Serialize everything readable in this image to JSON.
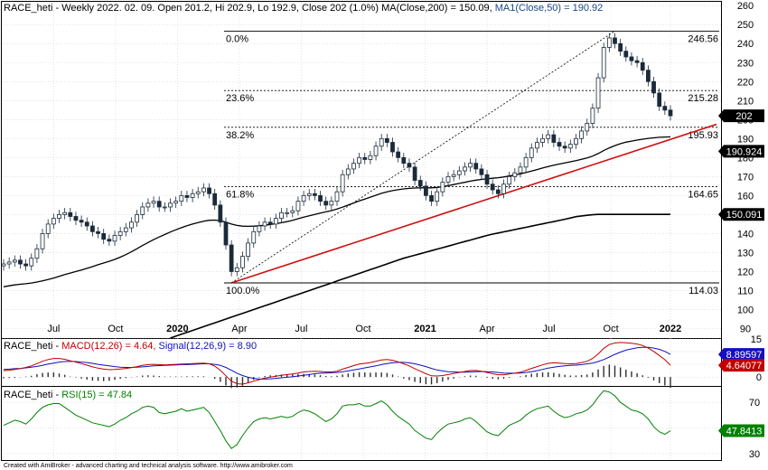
{
  "header": {
    "main_prefix": "RACE_heti - Weekly 2022. 02. 09. Open 201.2, Hi 202.9, Lo 192.9, Close 202 (1.0%) ",
    "main_ma200": "MA(Close,200) = 150.09,",
    "main_ma50": " MA1(Close,50) = 190.92",
    "macd_prefix": "RACE_heti - ",
    "macd_label": "MACD(12,26) = 4.64,",
    "macd_signal": " Signal(12,26,9) = 8.90",
    "rsi_prefix": "RACE_heti - ",
    "rsi_label": "RSI(15) = 47.84"
  },
  "footer": "Created with AmiBroker - advanced charting and technical analysis software. http://www.amibroker.com",
  "colors": {
    "grid": "#d0d0d0",
    "candle": "#1a2a3a",
    "ma200": "#000000",
    "ma50": "#000000",
    "trendline": "#d01010",
    "macd": "#c00000",
    "signal": "#1010c0",
    "hist": "#303030",
    "rsi": "#008000",
    "tag_price": "#000000",
    "tag_blue": "#1010c0",
    "tag_red": "#c00000",
    "tag_green": "#008000"
  },
  "chart_data": [
    {
      "type": "candlestick",
      "title": "RACE_heti - Weekly",
      "ylim": [
        85,
        262
      ],
      "y_ticks": [
        90,
        100,
        110,
        120,
        130,
        140,
        150,
        160,
        170,
        180,
        190,
        200,
        210,
        220,
        230,
        240,
        250,
        260
      ],
      "x_ticks": [
        "Jul",
        "Oct",
        "2020",
        "Apr",
        "Jul",
        "Oct",
        "2021",
        "Apr",
        "Jul",
        "Oct",
        "2022"
      ],
      "last_values": {
        "close": "202",
        "ma50": "190.924",
        "ma200": "150.091"
      },
      "fibonacci": [
        {
          "level": "0.0%",
          "price": 246.56,
          "label": "246.56"
        },
        {
          "level": "23.6%",
          "price": 215.28,
          "label": "215.28"
        },
        {
          "level": "38.2%",
          "price": 195.93,
          "label": "195.93"
        },
        {
          "level": "61.8%",
          "price": 164.65,
          "label": "164.65"
        },
        {
          "level": "100.0%",
          "price": 114.03,
          "label": "114.03"
        }
      ],
      "close_series": [
        124,
        125,
        126,
        124,
        123,
        127,
        132,
        140,
        145,
        148,
        150,
        151,
        149,
        147,
        146,
        144,
        141,
        140,
        137,
        136,
        139,
        141,
        143,
        146,
        150,
        154,
        156,
        157,
        154,
        154,
        156,
        157,
        160,
        159,
        161,
        162,
        164,
        161,
        155,
        146,
        134,
        120,
        122,
        128,
        135,
        141,
        144,
        146,
        145,
        148,
        151,
        151,
        152,
        157,
        160,
        161,
        160,
        157,
        155,
        157,
        162,
        171,
        174,
        177,
        180,
        179,
        181,
        186,
        190,
        188,
        183,
        180,
        177,
        175,
        168,
        165,
        160,
        157,
        162,
        167,
        170,
        171,
        173,
        175,
        177,
        174,
        171,
        166,
        163,
        161,
        166,
        170,
        172,
        175,
        180,
        185,
        188,
        190,
        192,
        188,
        186,
        185,
        187,
        190,
        194,
        198,
        206,
        222,
        238,
        243,
        240,
        236,
        233,
        231,
        230,
        226,
        220,
        214,
        207,
        205,
        202
      ],
      "ma50_series": [
        112,
        112.5,
        113,
        113.3,
        113.6,
        114,
        114.5,
        115.1,
        115.8,
        116.6,
        117.5,
        118.4,
        119.2,
        120,
        120.8,
        121.7,
        122.6,
        123.6,
        124.5,
        125.4,
        126.4,
        127.6,
        128.9,
        130.4,
        132,
        133.7,
        135.3,
        136.8,
        138.2,
        139.5,
        140.8,
        142,
        143.1,
        144.1,
        145,
        145.8,
        146.5,
        147,
        147.1,
        146.8,
        146,
        145,
        144.3,
        143.9,
        143.8,
        143.9,
        144.1,
        144.4,
        144.8,
        145.2,
        145.7,
        146.3,
        147,
        147.8,
        148.6,
        149.4,
        150.1,
        150.8,
        151.4,
        152.1,
        152.9,
        153.9,
        155,
        156.1,
        157.2,
        158.2,
        159.2,
        160.2,
        161.2,
        162,
        162.6,
        163.1,
        163.5,
        163.8,
        164,
        164.1,
        164.1,
        164.1,
        164.3,
        164.7,
        165.2,
        165.8,
        166.4,
        167,
        167.6,
        168.1,
        168.5,
        168.8,
        169.1,
        169.4,
        169.8,
        170.3,
        170.8,
        171.4,
        172.1,
        172.9,
        173.7,
        174.5,
        175.3,
        176,
        176.6,
        177.2,
        177.8,
        178.4,
        179.1,
        179.8,
        180.8,
        182.1,
        183.7,
        185.1,
        186.3,
        187.3,
        188.1,
        188.7,
        189.2,
        189.7,
        190.1,
        190.4,
        190.7,
        190.8,
        190.92
      ],
      "ma200_series": [
        55,
        56,
        57,
        58,
        59,
        60,
        61,
        62,
        63,
        64,
        65,
        66,
        67,
        68,
        69,
        70,
        71,
        72,
        73,
        74,
        75,
        76,
        77,
        78,
        79,
        80,
        81,
        82,
        83,
        84,
        85,
        86,
        87,
        88,
        89,
        90,
        91,
        92,
        93,
        94,
        95,
        96,
        97,
        98,
        99,
        100,
        101,
        102,
        103,
        104,
        105,
        106,
        107,
        108,
        109,
        110,
        111,
        112,
        113,
        114,
        115,
        116,
        117,
        118,
        119,
        120,
        121,
        122,
        123,
        124,
        125,
        126,
        127,
        127.8,
        128.6,
        129.4,
        130.2,
        131,
        131.8,
        132.6,
        133.4,
        134.2,
        135,
        135.8,
        136.6,
        137.4,
        138.2,
        139,
        139.7,
        140.3,
        140.9,
        141.5,
        142.1,
        142.7,
        143.3,
        143.9,
        144.5,
        145.1,
        145.7,
        146.3,
        146.9,
        147.5,
        148.2,
        148.9,
        149.3,
        149.6,
        149.9,
        150.09,
        150.09,
        150.09,
        150.09,
        150.09,
        150.09,
        150.09,
        150.09,
        150.09,
        150.09,
        150.09,
        150.09,
        150.09,
        150.09
      ],
      "ma200_visible_from_index": 30
    },
    {
      "type": "line",
      "title": "MACD(12,26) / Signal(12,26,9)",
      "ylim": [
        -3.5,
        15
      ],
      "y_ticks": [
        0,
        5,
        10,
        15
      ],
      "last_values": {
        "macd": "4.64077",
        "signal": "8.89597"
      },
      "macd_series": [
        2.5,
        2.7,
        3,
        3.3,
        3.8,
        4.4,
        5.3,
        6.2,
        6.9,
        7.3,
        7.3,
        7.0,
        6.4,
        5.9,
        5.3,
        4.7,
        4.0,
        3.5,
        3.1,
        2.9,
        3.0,
        3.2,
        3.4,
        3.7,
        4.1,
        4.6,
        4.9,
        5.0,
        4.9,
        4.8,
        4.9,
        5.0,
        5.1,
        5.2,
        5.3,
        5.4,
        5.5,
        5.2,
        4.3,
        2.7,
        0.5,
        -1.6,
        -2.6,
        -2.8,
        -2.3,
        -1.6,
        -1.0,
        -0.4,
        0.0,
        0.3,
        0.7,
        1.0,
        1.2,
        1.6,
        2.0,
        2.2,
        2.3,
        2.2,
        2.0,
        2.0,
        2.3,
        3.1,
        3.8,
        4.5,
        5.1,
        5.4,
        5.7,
        6.2,
        6.7,
        6.9,
        6.6,
        6.0,
        5.2,
        4.4,
        3.3,
        2.3,
        1.3,
        0.5,
        0.4,
        0.6,
        1.0,
        1.4,
        1.8,
        2.2,
        2.6,
        2.6,
        2.3,
        1.8,
        1.3,
        0.9,
        0.9,
        1.2,
        1.5,
        1.9,
        2.6,
        3.4,
        4.1,
        4.8,
        5.4,
        5.6,
        5.5,
        5.3,
        5.2,
        5.3,
        5.7,
        6.2,
        7.3,
        9.1,
        11.3,
        12.8,
        13.4,
        13.6,
        13.5,
        13.3,
        13.0,
        12.4,
        11.4,
        10.1,
        8.5,
        6.8,
        4.64
      ],
      "signal_series": [
        3,
        3.1,
        3.3,
        3.4,
        3.6,
        3.9,
        4.2,
        4.6,
        5.1,
        5.5,
        5.9,
        6.1,
        6.2,
        6.1,
        5.9,
        5.7,
        5.4,
        5.0,
        4.7,
        4.4,
        4.1,
        3.9,
        3.8,
        3.8,
        3.9,
        4.0,
        4.2,
        4.4,
        4.5,
        4.6,
        4.7,
        4.8,
        4.9,
        4.9,
        5.0,
        5.1,
        5.2,
        5.2,
        5.0,
        4.6,
        3.8,
        2.7,
        1.5,
        0.6,
        -0.1,
        -0.5,
        -0.8,
        -0.8,
        -0.7,
        -0.5,
        -0.3,
        -0.1,
        0.1,
        0.4,
        0.7,
        1.0,
        1.3,
        1.5,
        1.6,
        1.7,
        1.8,
        2.1,
        2.4,
        2.8,
        3.2,
        3.6,
        4.0,
        4.4,
        4.9,
        5.3,
        5.6,
        5.8,
        5.8,
        5.6,
        5.2,
        4.7,
        4.1,
        3.4,
        2.8,
        2.4,
        2.1,
        2.0,
        1.9,
        1.9,
        2.0,
        2.1,
        2.2,
        2.1,
        2.0,
        1.8,
        1.6,
        1.5,
        1.5,
        1.6,
        1.8,
        2.1,
        2.5,
        3.0,
        3.5,
        3.9,
        4.2,
        4.4,
        4.6,
        4.7,
        4.9,
        5.2,
        5.5,
        6.1,
        6.9,
        7.9,
        8.9,
        9.8,
        10.6,
        11.1,
        11.5,
        11.7,
        11.7,
        11.4,
        10.9,
        10.1,
        8.9
      ]
    },
    {
      "type": "line",
      "title": "RSI(15)",
      "ylim": [
        25,
        82
      ],
      "y_ticks": [
        30,
        50,
        70
      ],
      "last_values": {
        "rsi": "47.8413"
      },
      "rsi_series": [
        52,
        54,
        56,
        55,
        53,
        57,
        62,
        66,
        68,
        69,
        69,
        66,
        63,
        60,
        58,
        56,
        54,
        53,
        52,
        51,
        53,
        56,
        58,
        61,
        63,
        66,
        67,
        66,
        62,
        61,
        62,
        63,
        65,
        63,
        64,
        65,
        66,
        62,
        55,
        48,
        40,
        34,
        37,
        44,
        50,
        55,
        57,
        58,
        57,
        58,
        59,
        58,
        59,
        62,
        64,
        63,
        61,
        58,
        55,
        57,
        61,
        67,
        68,
        68,
        69,
        67,
        67,
        69,
        71,
        68,
        63,
        59,
        56,
        53,
        48,
        45,
        42,
        41,
        46,
        50,
        53,
        54,
        55,
        57,
        58,
        55,
        51,
        47,
        45,
        44,
        48,
        52,
        54,
        56,
        60,
        63,
        65,
        66,
        67,
        63,
        60,
        58,
        59,
        61,
        62,
        64,
        68,
        74,
        79,
        78,
        75,
        70,
        67,
        64,
        63,
        61,
        57,
        51,
        47,
        45,
        47.84
      ]
    }
  ]
}
